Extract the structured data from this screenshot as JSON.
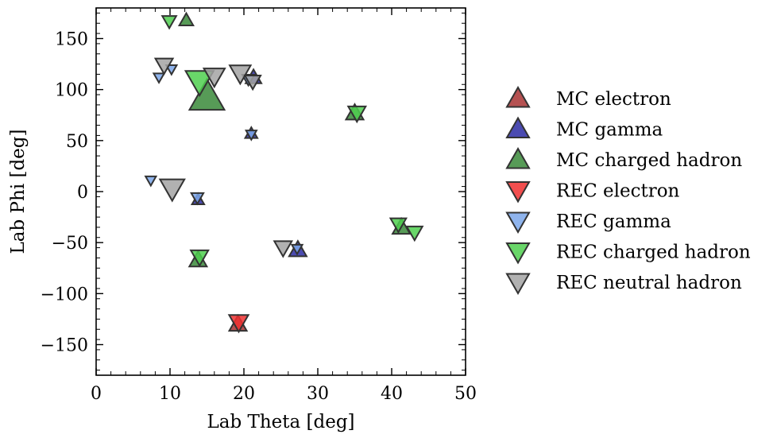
{
  "chart_data": {
    "type": "scatter",
    "title": "",
    "xlabel": "Lab Theta [deg]",
    "ylabel": "Lab Phi [deg]",
    "xlim": [
      0,
      50
    ],
    "ylim": [
      -180,
      180
    ],
    "x_ticks": [
      0,
      10,
      20,
      30,
      40,
      50
    ],
    "y_ticks": [
      -150,
      -100,
      -50,
      0,
      50,
      100,
      150
    ],
    "x_tick_labels": [
      "0",
      "10",
      "20",
      "30",
      "40",
      "50"
    ],
    "y_tick_labels": [
      "−150",
      "−100",
      "−50",
      "0",
      "50",
      "100",
      "150"
    ],
    "grid": false,
    "legend_position": "right, outside plot",
    "note_marker_size": "marker size varies per point (relative scale)",
    "series": [
      {
        "name": "MC electron",
        "marker": "triangle-up",
        "color": "#a83232",
        "points": [
          {
            "x": 19.2,
            "y": -130,
            "size": 1.0
          }
        ]
      },
      {
        "name": "MC gamma",
        "marker": "triangle-up",
        "color": "#2c2ca3",
        "points": [
          {
            "x": 21.0,
            "y": 57,
            "size": 0.7
          },
          {
            "x": 13.8,
            "y": -8,
            "size": 0.7
          },
          {
            "x": 27.3,
            "y": -57,
            "size": 1.0
          },
          {
            "x": 21.3,
            "y": 112,
            "size": 0.9
          }
        ]
      },
      {
        "name": "MC charged hadron",
        "marker": "triangle-up",
        "color": "#3a8a3a",
        "points": [
          {
            "x": 12.2,
            "y": 168,
            "size": 0.8
          },
          {
            "x": 15.0,
            "y": 93,
            "size": 2.0
          },
          {
            "x": 35.0,
            "y": 77,
            "size": 1.0
          },
          {
            "x": 13.8,
            "y": -67,
            "size": 1.0
          },
          {
            "x": 41.3,
            "y": -35,
            "size": 1.0
          }
        ]
      },
      {
        "name": "REC electron",
        "marker": "triangle-down",
        "color": "#f03030",
        "points": [
          {
            "x": 19.3,
            "y": -128,
            "size": 1.1
          }
        ]
      },
      {
        "name": "REC gamma",
        "marker": "triangle-down",
        "color": "#7ba7ea",
        "points": [
          {
            "x": 8.5,
            "y": 112,
            "size": 0.6
          },
          {
            "x": 10.2,
            "y": 120,
            "size": 0.6
          },
          {
            "x": 7.4,
            "y": 11,
            "size": 0.6
          },
          {
            "x": 13.7,
            "y": -6,
            "size": 0.7
          },
          {
            "x": 21.0,
            "y": 56,
            "size": 0.6
          },
          {
            "x": 27.2,
            "y": -56,
            "size": 0.6
          },
          {
            "x": 20.6,
            "y": 110,
            "size": 0.7
          }
        ]
      },
      {
        "name": "REC charged hadron",
        "marker": "triangle-down",
        "color": "#4fcf4f",
        "points": [
          {
            "x": 9.9,
            "y": 167,
            "size": 0.8
          },
          {
            "x": 14.0,
            "y": 108,
            "size": 1.6
          },
          {
            "x": 35.3,
            "y": 77,
            "size": 1.0
          },
          {
            "x": 14.0,
            "y": -64,
            "size": 1.0
          },
          {
            "x": 40.9,
            "y": -32,
            "size": 0.9
          },
          {
            "x": 43.1,
            "y": -40,
            "size": 0.9
          }
        ]
      },
      {
        "name": "REC neutral hadron",
        "marker": "triangle-down",
        "color": "#a3a3a3",
        "points": [
          {
            "x": 9.2,
            "y": 124,
            "size": 1.0
          },
          {
            "x": 10.3,
            "y": 3,
            "size": 1.4
          },
          {
            "x": 16.0,
            "y": 113,
            "size": 1.2
          },
          {
            "x": 19.5,
            "y": 116,
            "size": 1.2
          },
          {
            "x": 21.2,
            "y": 108,
            "size": 0.9
          },
          {
            "x": 25.3,
            "y": -55,
            "size": 1.0
          }
        ]
      }
    ]
  }
}
